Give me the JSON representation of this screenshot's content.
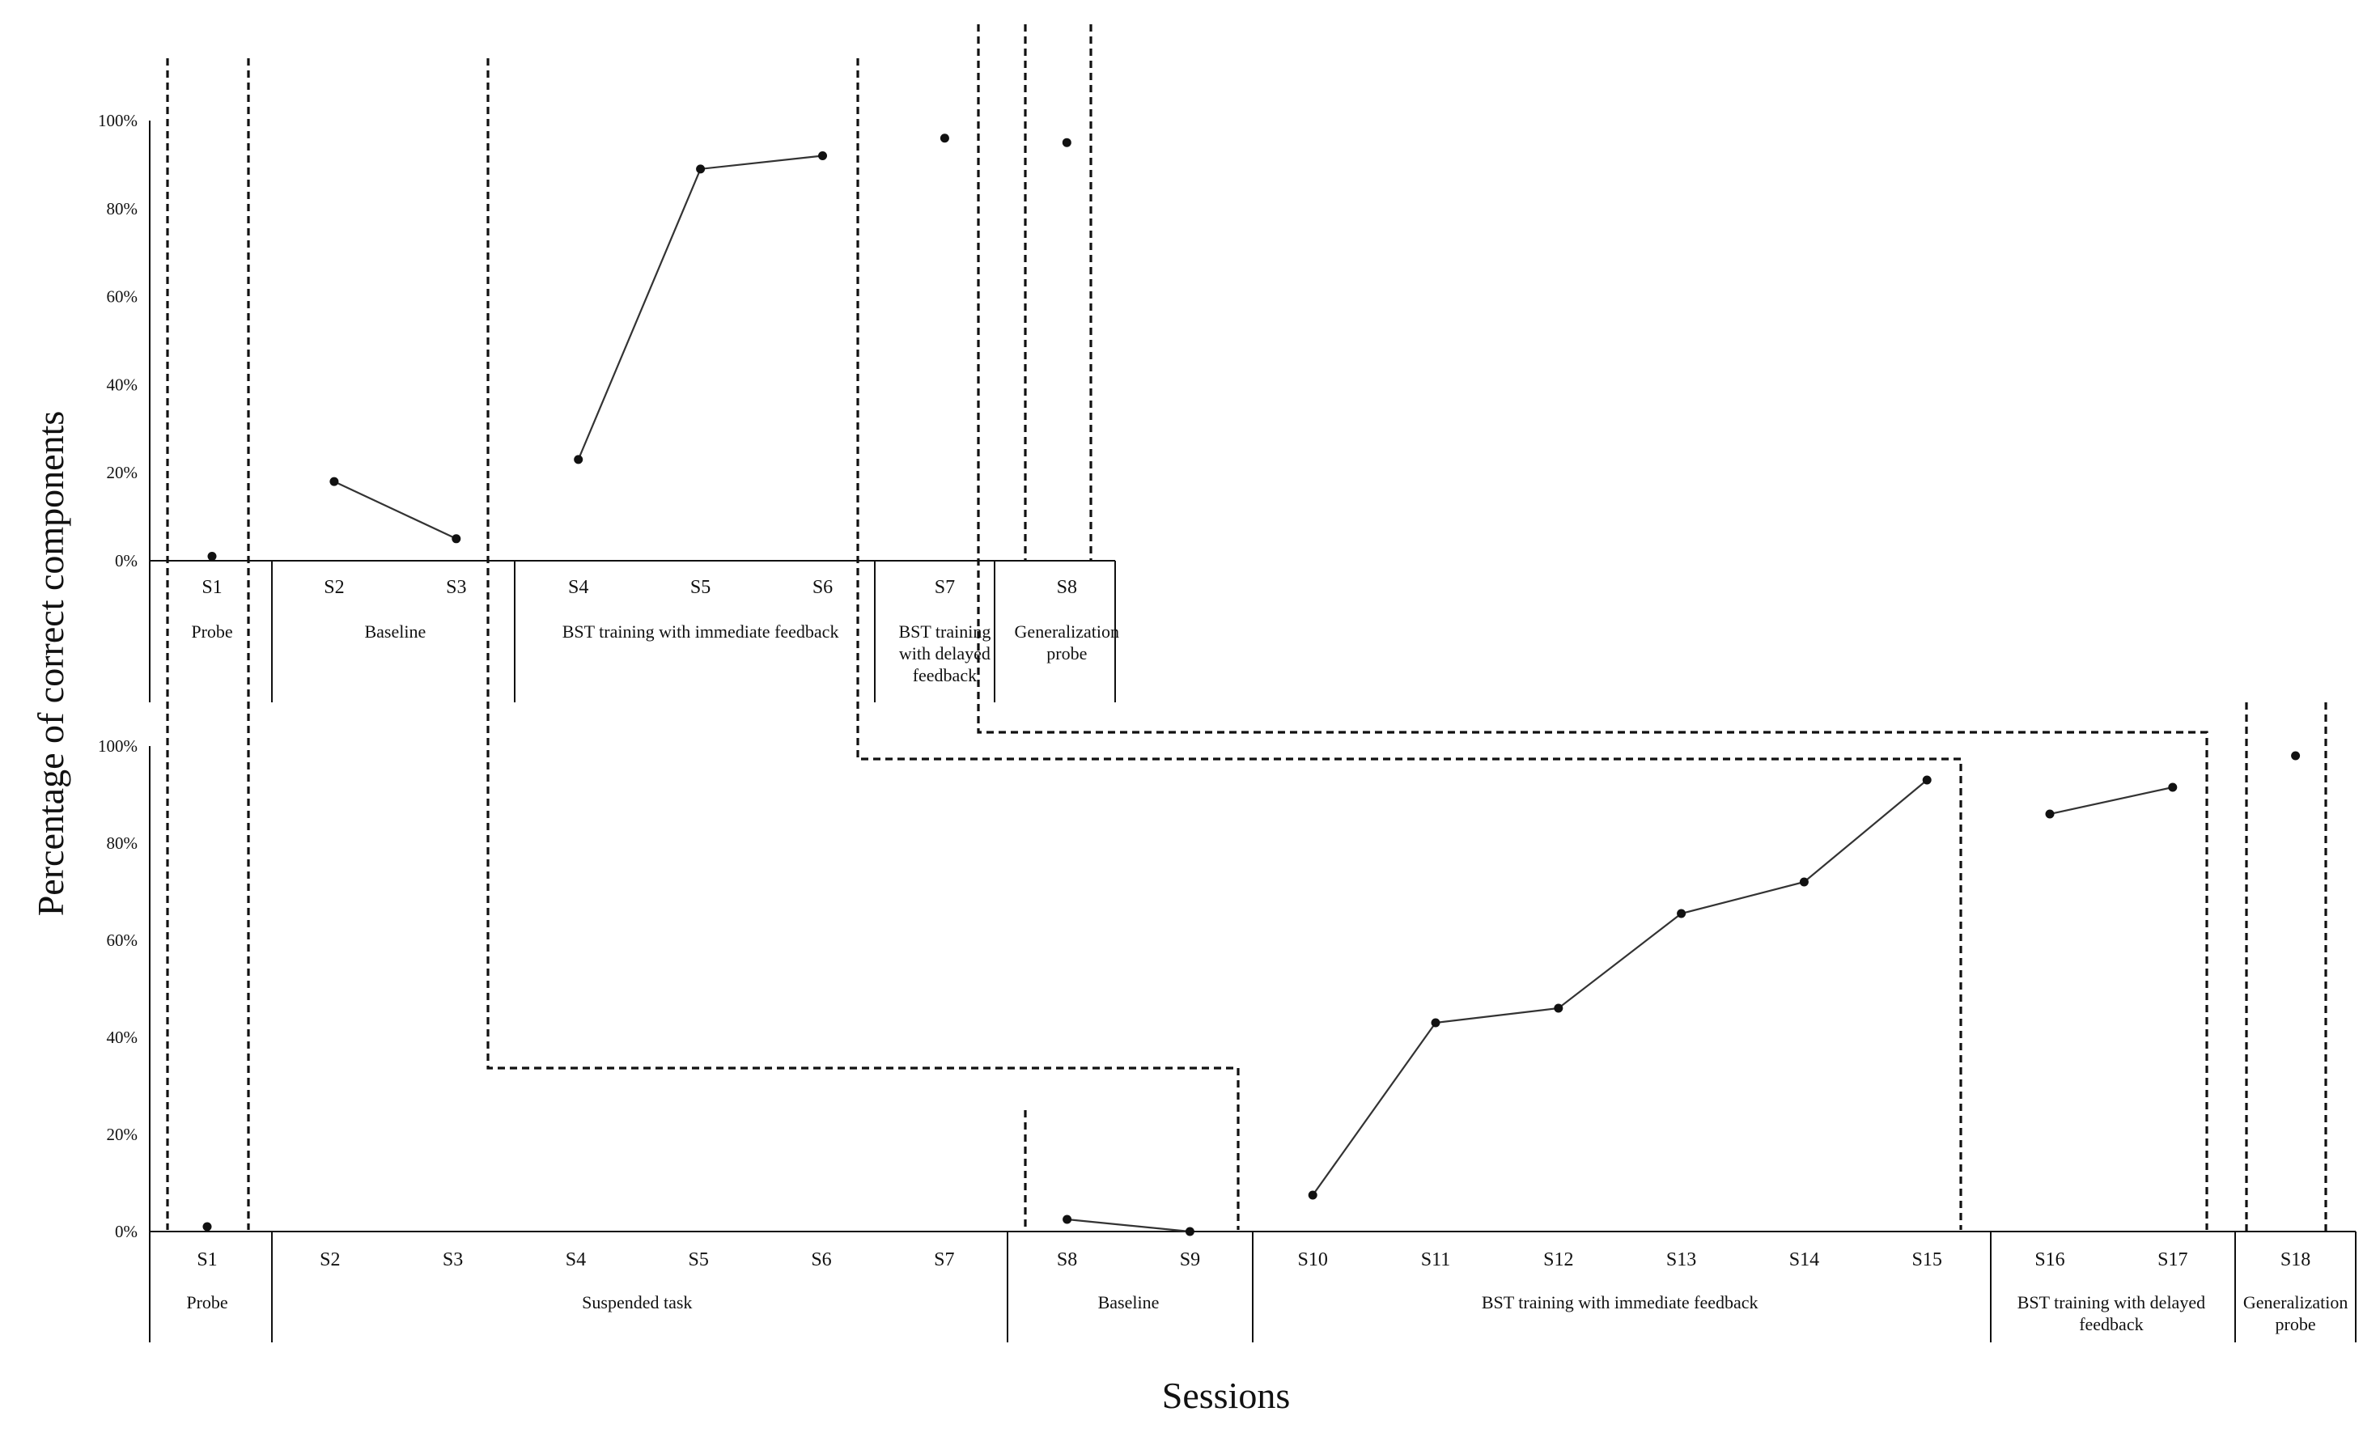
{
  "chart_data": {
    "type": "line",
    "ylabel": "Percentage  of correct  components",
    "xlabel": "Sessions",
    "grid": false,
    "legend": "none",
    "colors": {
      "line": "#333333",
      "marker": "#111111",
      "phase_line": "#111111"
    },
    "y_ticks": [
      "100%",
      "80%",
      "60%",
      "40%",
      "20%",
      "0%"
    ],
    "panels": [
      {
        "ylim": [
          0,
          100
        ],
        "categories": [
          "S1",
          "S2",
          "S3",
          "S4",
          "S5",
          "S6",
          "S7",
          "S8"
        ],
        "phases": [
          {
            "label": "Probe",
            "sessions": [
              "S1"
            ]
          },
          {
            "label": "Baseline",
            "sessions": [
              "S2",
              "S3"
            ]
          },
          {
            "label": "BST training with immediate feedback",
            "sessions": [
              "S4",
              "S5",
              "S6"
            ]
          },
          {
            "label": "BST training with delayed feedback",
            "sessions": [
              "S7"
            ]
          },
          {
            "label": "Generalization probe",
            "sessions": [
              "S8"
            ]
          }
        ],
        "segments": [
          {
            "x": [
              "S1"
            ],
            "y": [
              1
            ]
          },
          {
            "x": [
              "S2",
              "S3"
            ],
            "y": [
              18,
              5
            ]
          },
          {
            "x": [
              "S4",
              "S5",
              "S6"
            ],
            "y": [
              23,
              89,
              92
            ]
          },
          {
            "x": [
              "S7"
            ],
            "y": [
              96
            ]
          },
          {
            "x": [
              "S8"
            ],
            "y": [
              95
            ]
          }
        ]
      },
      {
        "ylim": [
          0,
          100
        ],
        "categories": [
          "S1",
          "S2",
          "S3",
          "S4",
          "S5",
          "S6",
          "S7",
          "S8",
          "S9",
          "S10",
          "S11",
          "S12",
          "S13",
          "S14",
          "S15",
          "S16",
          "S17",
          "S18"
        ],
        "phases": [
          {
            "label": "Probe",
            "sessions": [
              "S1"
            ]
          },
          {
            "label": "Suspended task",
            "sessions": [
              "S2",
              "S3",
              "S4",
              "S5",
              "S6",
              "S7"
            ]
          },
          {
            "label": "Baseline",
            "sessions": [
              "S8",
              "S9"
            ]
          },
          {
            "label": "BST training with immediate feedback",
            "sessions": [
              "S10",
              "S11",
              "S12",
              "S13",
              "S14",
              "S15"
            ]
          },
          {
            "label": "BST training with delayed feedback",
            "sessions": [
              "S16",
              "S17"
            ]
          },
          {
            "label": "Generalization probe",
            "sessions": [
              "S18"
            ]
          }
        ],
        "segments": [
          {
            "x": [
              "S1"
            ],
            "y": [
              1
            ]
          },
          {
            "x": [
              "S8",
              "S9"
            ],
            "y": [
              2.5,
              0
            ]
          },
          {
            "x": [
              "S10",
              "S11",
              "S12",
              "S13",
              "S14",
              "S15"
            ],
            "y": [
              7.5,
              43,
              46,
              65.5,
              72,
              93
            ]
          },
          {
            "x": [
              "S16",
              "S17"
            ],
            "y": [
              86,
              91.5
            ]
          },
          {
            "x": [
              "S18"
            ],
            "y": [
              98
            ]
          }
        ]
      }
    ]
  }
}
